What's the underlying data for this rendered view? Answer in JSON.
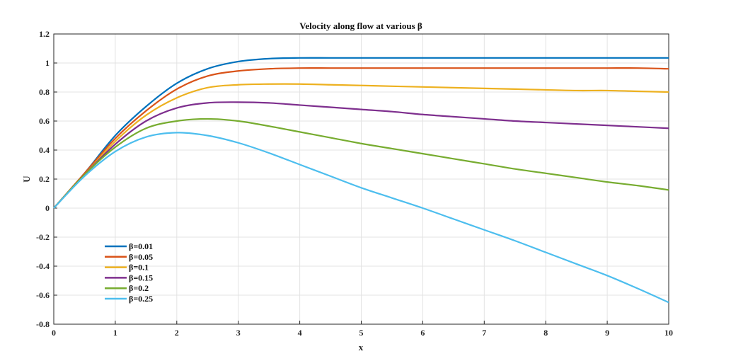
{
  "chart_data": {
    "type": "line",
    "title": "Velocity along flow at various β",
    "xlabel": "x",
    "ylabel": "U",
    "xlim": [
      0,
      10
    ],
    "ylim": [
      -0.8,
      1.2
    ],
    "xticks": [
      "0",
      "1",
      "2",
      "3",
      "4",
      "5",
      "6",
      "7",
      "8",
      "9",
      "10"
    ],
    "yticks": [
      "1.2",
      "1",
      "0.8",
      "0.6",
      "0.4",
      "0.2",
      "0",
      "-0.2",
      "-0.4",
      "-0.6",
      "-0.8"
    ],
    "grid": true,
    "legend_position": "lower-left",
    "x": [
      0,
      0.5,
      1,
      1.5,
      2,
      2.5,
      3,
      3.5,
      4,
      4.5,
      5,
      5.5,
      6,
      6.5,
      7,
      7.5,
      8,
      8.5,
      9,
      9.5,
      10
    ],
    "series": [
      {
        "name": "β=0.01",
        "color": "#0072BD",
        "values": [
          0,
          0.24,
          0.5,
          0.7,
          0.86,
          0.96,
          1.01,
          1.03,
          1.035,
          1.035,
          1.035,
          1.035,
          1.035,
          1.035,
          1.035,
          1.035,
          1.035,
          1.035,
          1.035,
          1.035,
          1.035
        ]
      },
      {
        "name": "β=0.05",
        "color": "#D95319",
        "values": [
          0,
          0.24,
          0.48,
          0.67,
          0.82,
          0.91,
          0.945,
          0.96,
          0.965,
          0.965,
          0.965,
          0.965,
          0.965,
          0.965,
          0.965,
          0.965,
          0.965,
          0.965,
          0.965,
          0.965,
          0.96
        ]
      },
      {
        "name": "β=0.1",
        "color": "#EDB120",
        "values": [
          0,
          0.23,
          0.46,
          0.64,
          0.76,
          0.83,
          0.85,
          0.855,
          0.855,
          0.85,
          0.845,
          0.84,
          0.835,
          0.83,
          0.825,
          0.82,
          0.815,
          0.81,
          0.81,
          0.805,
          0.8
        ]
      },
      {
        "name": "β=0.15",
        "color": "#7E2F8E",
        "values": [
          0,
          0.23,
          0.44,
          0.6,
          0.69,
          0.725,
          0.73,
          0.725,
          0.71,
          0.695,
          0.68,
          0.665,
          0.645,
          0.63,
          0.615,
          0.6,
          0.59,
          0.58,
          0.57,
          0.56,
          0.55
        ]
      },
      {
        "name": "β=0.2",
        "color": "#77AC30",
        "values": [
          0,
          0.23,
          0.42,
          0.55,
          0.6,
          0.615,
          0.6,
          0.565,
          0.525,
          0.485,
          0.445,
          0.41,
          0.375,
          0.34,
          0.305,
          0.27,
          0.24,
          0.21,
          0.18,
          0.155,
          0.125
        ]
      },
      {
        "name": "β=0.25",
        "color": "#4DBEEE",
        "values": [
          0,
          0.22,
          0.39,
          0.49,
          0.52,
          0.5,
          0.45,
          0.38,
          0.3,
          0.22,
          0.14,
          0.07,
          0.0,
          -0.075,
          -0.15,
          -0.225,
          -0.305,
          -0.385,
          -0.465,
          -0.555,
          -0.65
        ]
      }
    ]
  }
}
